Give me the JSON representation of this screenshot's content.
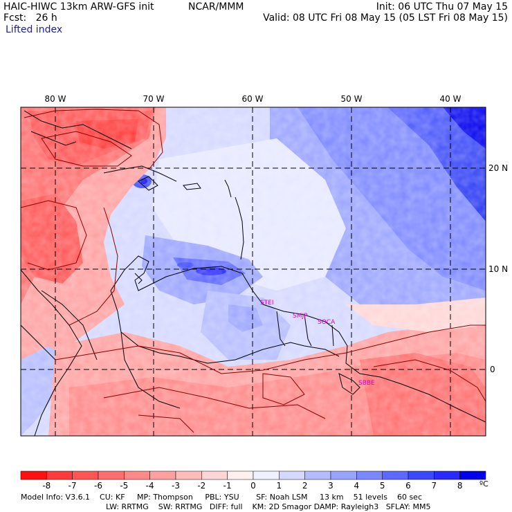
{
  "header": {
    "title": "HAIC-HIWC 13km ARW-GFS init",
    "org": "NCAR/MMM",
    "init": "Init: 06 UTC Thu 07 May 15",
    "fcst": "Fcst:   26 h",
    "valid": "Valid: 08 UTC Fri 08 May 15 (05 LST Fri 08 May 15)",
    "field": "Lifted index"
  },
  "map": {
    "lon_labels": [
      "80 W",
      "70 W",
      "60 W",
      "50 W",
      "40 W"
    ],
    "lat_labels": [
      "20 N",
      "10 N",
      "0"
    ],
    "stations": [
      "STEI",
      "SMJP",
      "SOCA",
      "SBBE"
    ],
    "colors": {
      "station": "#d000d0",
      "boundary": "#000000",
      "contour": "#8b0000",
      "grid": "#000000"
    }
  },
  "colorbar": {
    "ticks": [
      "-8",
      "-7",
      "-6",
      "-5",
      "-4",
      "-3",
      "-2",
      "-1",
      "0",
      "1",
      "2",
      "3",
      "4",
      "5",
      "6",
      "7",
      "8"
    ],
    "unit": "ºC",
    "colors": [
      "#ff1010",
      "#ff3a3a",
      "#ff5555",
      "#ff6e6e",
      "#ff8888",
      "#ffa0a0",
      "#ffbcbc",
      "#ffd6d6",
      "#fff0f0",
      "#f0f0ff",
      "#d4d8ff",
      "#b4bcff",
      "#9aa4ff",
      "#7c88ff",
      "#5c68ff",
      "#3c48ff",
      "#2a2aff",
      "#0000ee"
    ]
  },
  "footer": {
    "line1": "Model Info: V3.6.1    CU: KF     MP: Thompson     PBL: YSU       SF: Noah LSM     13 km    51 levels    60 sec",
    "line2": "LW: RRTMG    SW: RRTMG   DIFF: full    KM: 2D Smagor DAMP: Rayleigh3   SFLAY: MM5"
  }
}
